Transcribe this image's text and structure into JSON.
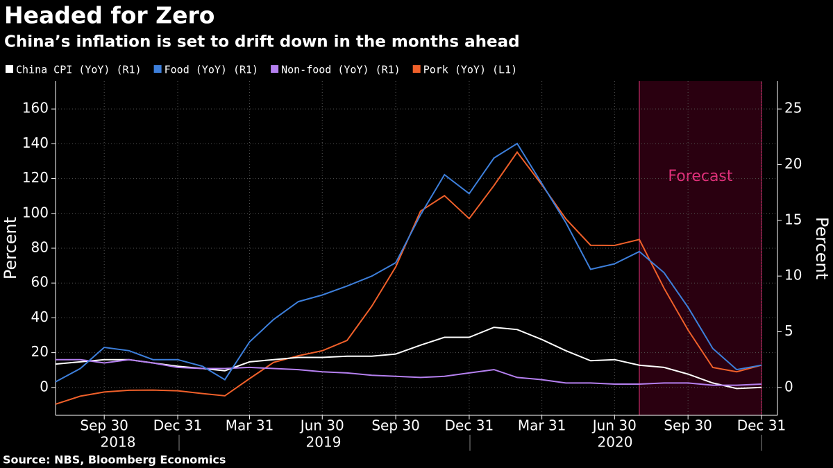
{
  "chart_data": {
    "type": "line",
    "title": "Headed for Zero",
    "subtitle": "China’s inflation is set to drift down in the months ahead",
    "source": "Source: NBS, Bloomberg Economics",
    "ylabel": "Percent",
    "y2label": "Percent",
    "x": [
      "2018-07-31",
      "2018-08-31",
      "2018-09-30",
      "2018-10-31",
      "2018-11-30",
      "2018-12-31",
      "2019-01-31",
      "2019-02-28",
      "2019-03-31",
      "2019-04-30",
      "2019-05-31",
      "2019-06-30",
      "2019-07-31",
      "2019-08-31",
      "2019-09-30",
      "2019-10-31",
      "2019-11-30",
      "2019-12-31",
      "2020-01-31",
      "2020-02-29",
      "2020-03-31",
      "2020-04-30",
      "2020-05-31",
      "2020-06-30",
      "2020-07-31",
      "2020-08-31",
      "2020-09-30",
      "2020-10-31",
      "2020-11-30",
      "2020-12-31"
    ],
    "series": [
      {
        "name": "China CPI (YoY) (R1)",
        "color": "#ffffff",
        "axis": "y2",
        "values": [
          2.1,
          2.3,
          2.5,
          2.5,
          2.2,
          1.9,
          1.7,
          1.5,
          2.3,
          2.5,
          2.7,
          2.7,
          2.8,
          2.8,
          3.0,
          3.8,
          4.5,
          4.5,
          5.4,
          5.2,
          4.3,
          3.3,
          2.4,
          2.5,
          2.0,
          1.8,
          1.2,
          0.4,
          -0.1,
          0.0
        ]
      },
      {
        "name": "Food (YoY) (R1)",
        "color": "#3d7fdb",
        "axis": "y2",
        "values": [
          0.5,
          1.7,
          3.6,
          3.3,
          2.5,
          2.5,
          1.9,
          0.7,
          4.1,
          6.1,
          7.7,
          8.3,
          9.1,
          10.0,
          11.2,
          15.5,
          19.1,
          17.4,
          20.6,
          21.9,
          18.3,
          14.8,
          10.6,
          11.1,
          12.2,
          10.3,
          7.2,
          3.5,
          1.6,
          2.0
        ]
      },
      {
        "name": "Non-food (YoY) (R1)",
        "color": "#b580f0",
        "axis": "y2",
        "values": [
          2.5,
          2.5,
          2.2,
          2.5,
          2.2,
          1.8,
          1.7,
          1.7,
          1.8,
          1.7,
          1.6,
          1.4,
          1.3,
          1.1,
          1.0,
          0.9,
          1.0,
          1.3,
          1.6,
          0.9,
          0.7,
          0.4,
          0.4,
          0.3,
          0.3,
          0.4,
          0.4,
          0.2,
          0.2,
          0.3
        ]
      },
      {
        "name": "Pork (YoY) (L1)",
        "color": "#f0602a",
        "axis": "y",
        "values": [
          -9.6,
          -5.0,
          -2.6,
          -1.6,
          -1.5,
          -1.9,
          -3.5,
          -4.8,
          5.1,
          14.4,
          18.2,
          21.1,
          27.0,
          46.7,
          69.3,
          101.3,
          110.2,
          97.0,
          116.0,
          135.2,
          116.4,
          96.9,
          81.7,
          81.6,
          85.0,
          57.0,
          33.0,
          11.5,
          9.0,
          12.8
        ]
      }
    ],
    "xlim": [
      "2018-07-31",
      "2021-01-20"
    ],
    "xticks": [
      {
        "value": "2018-09-30",
        "label": "Sep 30"
      },
      {
        "value": "2018-12-31",
        "label": "Dec 31"
      },
      {
        "value": "2019-03-31",
        "label": "Mar 31"
      },
      {
        "value": "2019-06-30",
        "label": "Jun 30"
      },
      {
        "value": "2019-09-30",
        "label": "Sep 30"
      },
      {
        "value": "2019-12-31",
        "label": "Dec 31"
      },
      {
        "value": "2020-03-31",
        "label": "Mar 31"
      },
      {
        "value": "2020-06-30",
        "label": "Jun 30"
      },
      {
        "value": "2020-09-30",
        "label": "Sep 30"
      },
      {
        "value": "2020-12-31",
        "label": "Dec 31"
      }
    ],
    "years": [
      "2018",
      "2019",
      "2020"
    ],
    "ylim": [
      -16,
      176
    ],
    "yticks": [
      0,
      20,
      40,
      60,
      80,
      100,
      120,
      140,
      160
    ],
    "y2lim": [
      -2.5,
      27.5
    ],
    "y2ticks": [
      0,
      5,
      10,
      15,
      20,
      25
    ],
    "grid": true,
    "forecast": {
      "label": "Forecast",
      "start": "2020-07-31",
      "end": "2020-12-31"
    }
  }
}
